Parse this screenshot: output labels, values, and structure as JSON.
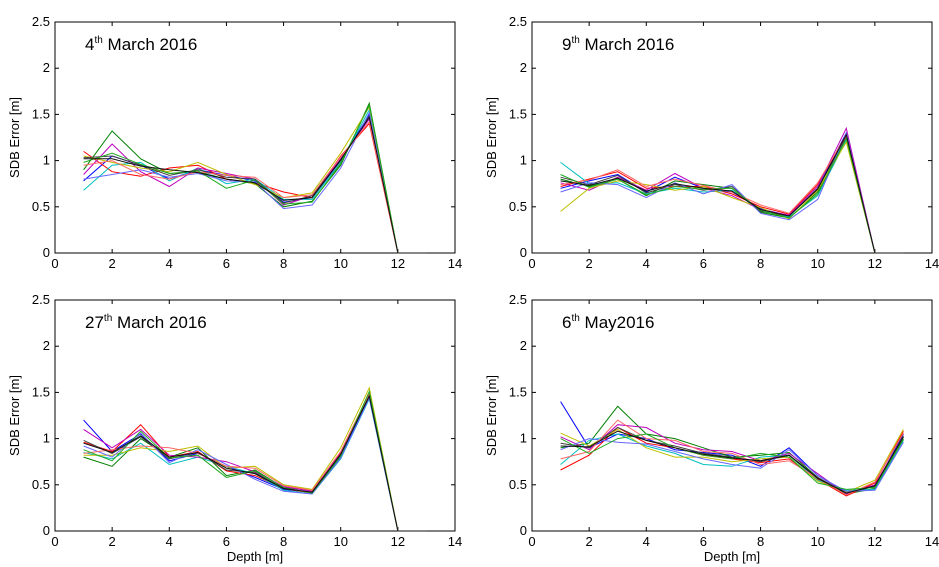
{
  "chart_data": [
    {
      "type": "line",
      "title": {
        "day": "4",
        "suffix": "th",
        "rest": " March 2016"
      },
      "xlabel": "",
      "ylabel": "SDB Error [m]",
      "xlim": [
        0,
        14
      ],
      "ylim": [
        0,
        2.5
      ],
      "xticks": [
        "0",
        "2",
        "4",
        "6",
        "8",
        "10",
        "12",
        "14"
      ],
      "yticks": [
        "0",
        "0.5",
        "1",
        "1.5",
        "2",
        "2.5"
      ],
      "grid": false,
      "x": [
        1,
        2,
        3,
        4,
        5,
        6,
        7,
        8,
        9,
        10,
        11,
        12,
        13
      ],
      "series": [
        {
          "color": "#0000ff",
          "values": [
            0.78,
            1.05,
            0.95,
            0.8,
            0.9,
            0.84,
            0.78,
            0.55,
            0.6,
            1.0,
            1.5,
            0,
            0
          ]
        },
        {
          "color": "#008000",
          "values": [
            0.9,
            1.32,
            1.02,
            0.86,
            0.88,
            0.8,
            0.75,
            0.5,
            0.56,
            0.95,
            1.62,
            0,
            0
          ]
        },
        {
          "color": "#ff0000",
          "values": [
            1.1,
            0.88,
            0.83,
            0.92,
            0.95,
            0.8,
            0.76,
            0.66,
            0.6,
            1.05,
            1.4,
            0,
            0
          ]
        },
        {
          "color": "#00bfbf",
          "values": [
            0.68,
            0.95,
            0.98,
            0.78,
            0.92,
            0.75,
            0.8,
            0.58,
            0.58,
            0.98,
            1.55,
            0,
            0
          ]
        },
        {
          "color": "#bf00bf",
          "values": [
            0.85,
            1.18,
            0.88,
            0.72,
            0.92,
            0.86,
            0.8,
            0.52,
            0.62,
            1.02,
            1.45,
            0,
            0
          ]
        },
        {
          "color": "#bfbf00",
          "values": [
            1.05,
            0.98,
            0.92,
            0.88,
            0.98,
            0.85,
            0.74,
            0.6,
            0.65,
            1.08,
            1.58,
            0,
            0
          ]
        },
        {
          "color": "#404040",
          "values": [
            1.03,
            1.05,
            0.95,
            0.84,
            0.9,
            0.82,
            0.8,
            0.54,
            0.62,
            1.0,
            1.48,
            0,
            0
          ]
        },
        {
          "color": "#6666ff",
          "values": [
            0.8,
            0.85,
            0.9,
            0.82,
            0.86,
            0.78,
            0.77,
            0.48,
            0.52,
            0.92,
            1.52,
            0,
            0
          ]
        },
        {
          "color": "#ff6666",
          "values": [
            0.95,
            1.0,
            0.85,
            0.8,
            0.88,
            0.84,
            0.82,
            0.6,
            0.63,
            1.04,
            1.42,
            0,
            0
          ]
        },
        {
          "color": "#22aa22",
          "values": [
            0.98,
            1.08,
            0.96,
            0.86,
            0.89,
            0.7,
            0.79,
            0.53,
            0.55,
            0.97,
            1.6,
            0,
            0
          ]
        },
        {
          "color": "#111111",
          "values": [
            1.02,
            1.02,
            0.94,
            0.9,
            0.87,
            0.8,
            0.76,
            0.57,
            0.6,
            1.01,
            1.47,
            0,
            0
          ]
        }
      ]
    },
    {
      "type": "line",
      "title": {
        "day": "9",
        "suffix": "th",
        "rest": " March 2016"
      },
      "xlabel": "",
      "ylabel": "SDB Error [m]",
      "xlim": [
        0,
        14
      ],
      "ylim": [
        0,
        2.5
      ],
      "xticks": [
        "0",
        "2",
        "4",
        "6",
        "8",
        "10",
        "12",
        "14"
      ],
      "yticks": [
        "0",
        "0.5",
        "1",
        "1.5",
        "2",
        "2.5"
      ],
      "grid": false,
      "x": [
        1,
        2,
        3,
        4,
        5,
        6,
        7,
        8,
        9,
        10,
        11,
        12,
        13
      ],
      "series": [
        {
          "color": "#0000ff",
          "values": [
            0.7,
            0.78,
            0.85,
            0.66,
            0.82,
            0.7,
            0.66,
            0.48,
            0.4,
            0.7,
            1.3,
            0,
            0
          ]
        },
        {
          "color": "#008000",
          "values": [
            0.8,
            0.72,
            0.8,
            0.62,
            0.78,
            0.74,
            0.7,
            0.44,
            0.38,
            0.66,
            1.25,
            0,
            0
          ]
        },
        {
          "color": "#ff0000",
          "values": [
            0.72,
            0.8,
            0.88,
            0.7,
            0.72,
            0.72,
            0.64,
            0.5,
            0.42,
            0.74,
            1.28,
            0,
            0
          ]
        },
        {
          "color": "#00bfbf",
          "values": [
            0.98,
            0.75,
            0.76,
            0.64,
            0.7,
            0.66,
            0.68,
            0.46,
            0.39,
            0.62,
            1.22,
            0,
            0
          ]
        },
        {
          "color": "#bf00bf",
          "values": [
            0.76,
            0.68,
            0.82,
            0.68,
            0.86,
            0.7,
            0.62,
            0.47,
            0.41,
            0.72,
            1.35,
            0,
            0
          ]
        },
        {
          "color": "#bfbf00",
          "values": [
            0.45,
            0.7,
            0.78,
            0.74,
            0.68,
            0.72,
            0.6,
            0.49,
            0.37,
            0.68,
            1.2,
            0,
            0
          ]
        },
        {
          "color": "#404040",
          "values": [
            0.82,
            0.74,
            0.84,
            0.65,
            0.74,
            0.68,
            0.72,
            0.45,
            0.4,
            0.7,
            1.26,
            0,
            0
          ]
        },
        {
          "color": "#6666ff",
          "values": [
            0.66,
            0.76,
            0.74,
            0.6,
            0.76,
            0.64,
            0.74,
            0.43,
            0.36,
            0.58,
            1.3,
            0,
            0
          ]
        },
        {
          "color": "#ff6666",
          "values": [
            0.74,
            0.79,
            0.9,
            0.72,
            0.8,
            0.73,
            0.66,
            0.52,
            0.43,
            0.76,
            1.27,
            0,
            0
          ]
        },
        {
          "color": "#22aa22",
          "values": [
            0.85,
            0.71,
            0.8,
            0.63,
            0.72,
            0.69,
            0.7,
            0.46,
            0.38,
            0.64,
            1.24,
            0,
            0
          ]
        },
        {
          "color": "#111111",
          "values": [
            0.78,
            0.73,
            0.81,
            0.67,
            0.75,
            0.7,
            0.67,
            0.47,
            0.4,
            0.69,
            1.28,
            0,
            0
          ]
        }
      ]
    },
    {
      "type": "line",
      "title": {
        "day": "27",
        "suffix": "th",
        "rest": " March 2016"
      },
      "xlabel": "Depth [m]",
      "ylabel": "SDB Error [m]",
      "xlim": [
        0,
        14
      ],
      "ylim": [
        0,
        2.5
      ],
      "xticks": [
        "0",
        "2",
        "4",
        "6",
        "8",
        "10",
        "12",
        "14"
      ],
      "yticks": [
        "0",
        "0.5",
        "1",
        "1.5",
        "2",
        "2.5"
      ],
      "grid": false,
      "x": [
        1,
        2,
        3,
        4,
        5,
        6,
        7,
        8,
        9,
        10,
        11,
        12,
        13
      ],
      "series": [
        {
          "color": "#0000ff",
          "values": [
            1.2,
            0.86,
            1.05,
            0.76,
            0.84,
            0.7,
            0.58,
            0.45,
            0.42,
            0.8,
            1.45,
            0,
            0
          ]
        },
        {
          "color": "#008000",
          "values": [
            0.8,
            0.7,
            1.0,
            0.8,
            0.9,
            0.6,
            0.66,
            0.47,
            0.44,
            0.82,
            1.5,
            0,
            0
          ]
        },
        {
          "color": "#ff0000",
          "values": [
            0.96,
            0.86,
            1.15,
            0.8,
            0.86,
            0.65,
            0.6,
            0.46,
            0.41,
            0.85,
            1.48,
            0,
            0
          ]
        },
        {
          "color": "#00bfbf",
          "values": [
            0.85,
            0.78,
            0.95,
            0.72,
            0.8,
            0.7,
            0.62,
            0.44,
            0.4,
            0.78,
            1.43,
            0,
            0
          ]
        },
        {
          "color": "#bf00bf",
          "values": [
            1.1,
            0.9,
            1.1,
            0.82,
            0.8,
            0.75,
            0.64,
            0.48,
            0.43,
            0.84,
            1.46,
            0,
            0
          ]
        },
        {
          "color": "#bfbf00",
          "values": [
            0.82,
            0.82,
            0.9,
            0.86,
            0.92,
            0.68,
            0.7,
            0.5,
            0.45,
            0.9,
            1.55,
            0,
            0
          ]
        },
        {
          "color": "#404040",
          "values": [
            0.98,
            0.84,
            1.02,
            0.78,
            0.85,
            0.66,
            0.63,
            0.46,
            0.42,
            0.83,
            1.47,
            0,
            0
          ]
        },
        {
          "color": "#6666ff",
          "values": [
            0.92,
            0.8,
            1.06,
            0.74,
            0.88,
            0.72,
            0.56,
            0.43,
            0.4,
            0.79,
            1.44,
            0,
            0
          ]
        },
        {
          "color": "#ff6666",
          "values": [
            0.84,
            0.88,
            0.92,
            0.9,
            0.84,
            0.7,
            0.68,
            0.49,
            0.44,
            0.86,
            1.49,
            0,
            0
          ]
        },
        {
          "color": "#22aa22",
          "values": [
            0.88,
            0.76,
            1.08,
            0.79,
            0.82,
            0.58,
            0.65,
            0.47,
            0.41,
            0.81,
            1.51,
            0,
            0
          ]
        },
        {
          "color": "#111111",
          "values": [
            0.95,
            0.85,
            1.03,
            0.8,
            0.85,
            0.68,
            0.62,
            0.46,
            0.42,
            0.83,
            1.46,
            0,
            0
          ]
        }
      ]
    },
    {
      "type": "line",
      "title": {
        "day": "6",
        "suffix": "th",
        "rest": " May2016"
      },
      "xlabel": "Depth [m]",
      "ylabel": "SDB Error [m]",
      "xlim": [
        0,
        14
      ],
      "ylim": [
        0,
        2.5
      ],
      "xticks": [
        "0",
        "2",
        "4",
        "6",
        "8",
        "10",
        "12",
        "14"
      ],
      "yticks": [
        "0",
        "0.5",
        "1",
        "1.5",
        "2",
        "2.5"
      ],
      "grid": false,
      "x": [
        1,
        2,
        3,
        4,
        5,
        6,
        7,
        8,
        9,
        10,
        11,
        12,
        13
      ],
      "series": [
        {
          "color": "#0000ff",
          "values": [
            1.4,
            0.9,
            1.05,
            1.0,
            0.88,
            0.85,
            0.82,
            0.7,
            0.9,
            0.6,
            0.42,
            0.48,
            1.05
          ]
        },
        {
          "color": "#008000",
          "values": [
            0.9,
            0.95,
            1.35,
            1.05,
            1.0,
            0.9,
            0.8,
            0.82,
            0.85,
            0.58,
            0.4,
            0.46,
            1.0
          ]
        },
        {
          "color": "#ff0000",
          "values": [
            0.66,
            0.82,
            1.12,
            0.95,
            0.9,
            0.82,
            0.78,
            0.74,
            0.78,
            0.56,
            0.38,
            0.52,
            1.08
          ]
        },
        {
          "color": "#00bfbf",
          "values": [
            0.72,
            0.98,
            1.05,
            0.92,
            0.84,
            0.72,
            0.7,
            0.8,
            0.82,
            0.55,
            0.44,
            0.45,
            0.98
          ]
        },
        {
          "color": "#bf00bf",
          "values": [
            1.02,
            0.88,
            1.15,
            1.12,
            0.95,
            0.88,
            0.86,
            0.76,
            0.84,
            0.62,
            0.4,
            0.5,
            1.02
          ]
        },
        {
          "color": "#bfbf00",
          "values": [
            1.06,
            0.92,
            1.1,
            0.9,
            0.8,
            0.8,
            0.75,
            0.78,
            0.8,
            0.54,
            0.42,
            0.55,
            1.1
          ]
        },
        {
          "color": "#404040",
          "values": [
            0.95,
            0.9,
            1.12,
            0.98,
            0.92,
            0.84,
            0.8,
            0.75,
            0.82,
            0.58,
            0.41,
            0.48,
            1.03
          ]
        },
        {
          "color": "#6666ff",
          "values": [
            0.88,
            1.0,
            0.96,
            0.94,
            0.86,
            0.78,
            0.72,
            0.68,
            0.88,
            0.6,
            0.43,
            0.44,
            0.96
          ]
        },
        {
          "color": "#ff6666",
          "values": [
            0.78,
            0.86,
            1.2,
            1.0,
            0.98,
            0.86,
            0.84,
            0.72,
            0.76,
            0.57,
            0.39,
            0.53,
            1.06
          ]
        },
        {
          "color": "#22aa22",
          "values": [
            1.0,
            0.84,
            1.0,
            1.05,
            0.9,
            0.82,
            0.78,
            0.84,
            0.8,
            0.52,
            0.45,
            0.47,
            0.99
          ]
        },
        {
          "color": "#111111",
          "values": [
            0.92,
            0.91,
            1.08,
            0.98,
            0.9,
            0.83,
            0.79,
            0.76,
            0.82,
            0.57,
            0.41,
            0.49,
            1.02
          ]
        }
      ]
    }
  ]
}
